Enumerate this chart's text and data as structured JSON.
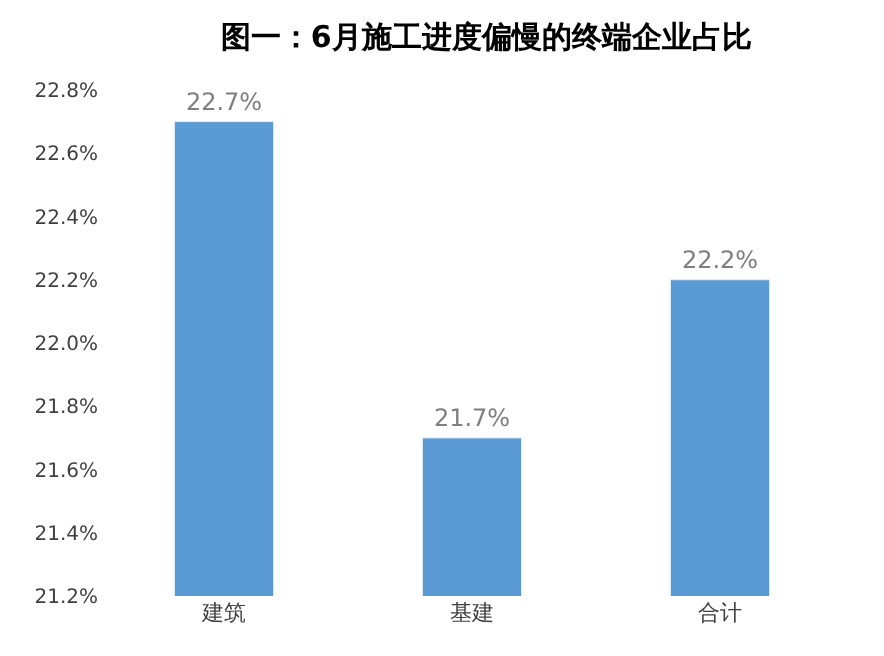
{
  "chart_data": {
    "type": "bar",
    "title": "图一：6月施工进度偏慢的终端企业占比",
    "categories": [
      "建筑",
      "基建",
      "合计"
    ],
    "values": [
      22.7,
      21.7,
      22.2
    ],
    "value_labels": [
      "22.7%",
      "21.7%",
      "22.2%"
    ],
    "color": "#5b9bd5",
    "ylim": [
      21.2,
      22.8
    ],
    "yticks": [
      {
        "value": 21.2,
        "label": "21.2%"
      },
      {
        "value": 21.4,
        "label": "21.4%"
      },
      {
        "value": 21.6,
        "label": "21.6%"
      },
      {
        "value": 21.8,
        "label": "21.8%"
      },
      {
        "value": 22.0,
        "label": "22.0%"
      },
      {
        "value": 22.2,
        "label": "22.2%"
      },
      {
        "value": 22.4,
        "label": "22.4%"
      },
      {
        "value": 22.6,
        "label": "22.6%"
      },
      {
        "value": 22.8,
        "label": "22.8%"
      }
    ],
    "data_labels": false
  }
}
